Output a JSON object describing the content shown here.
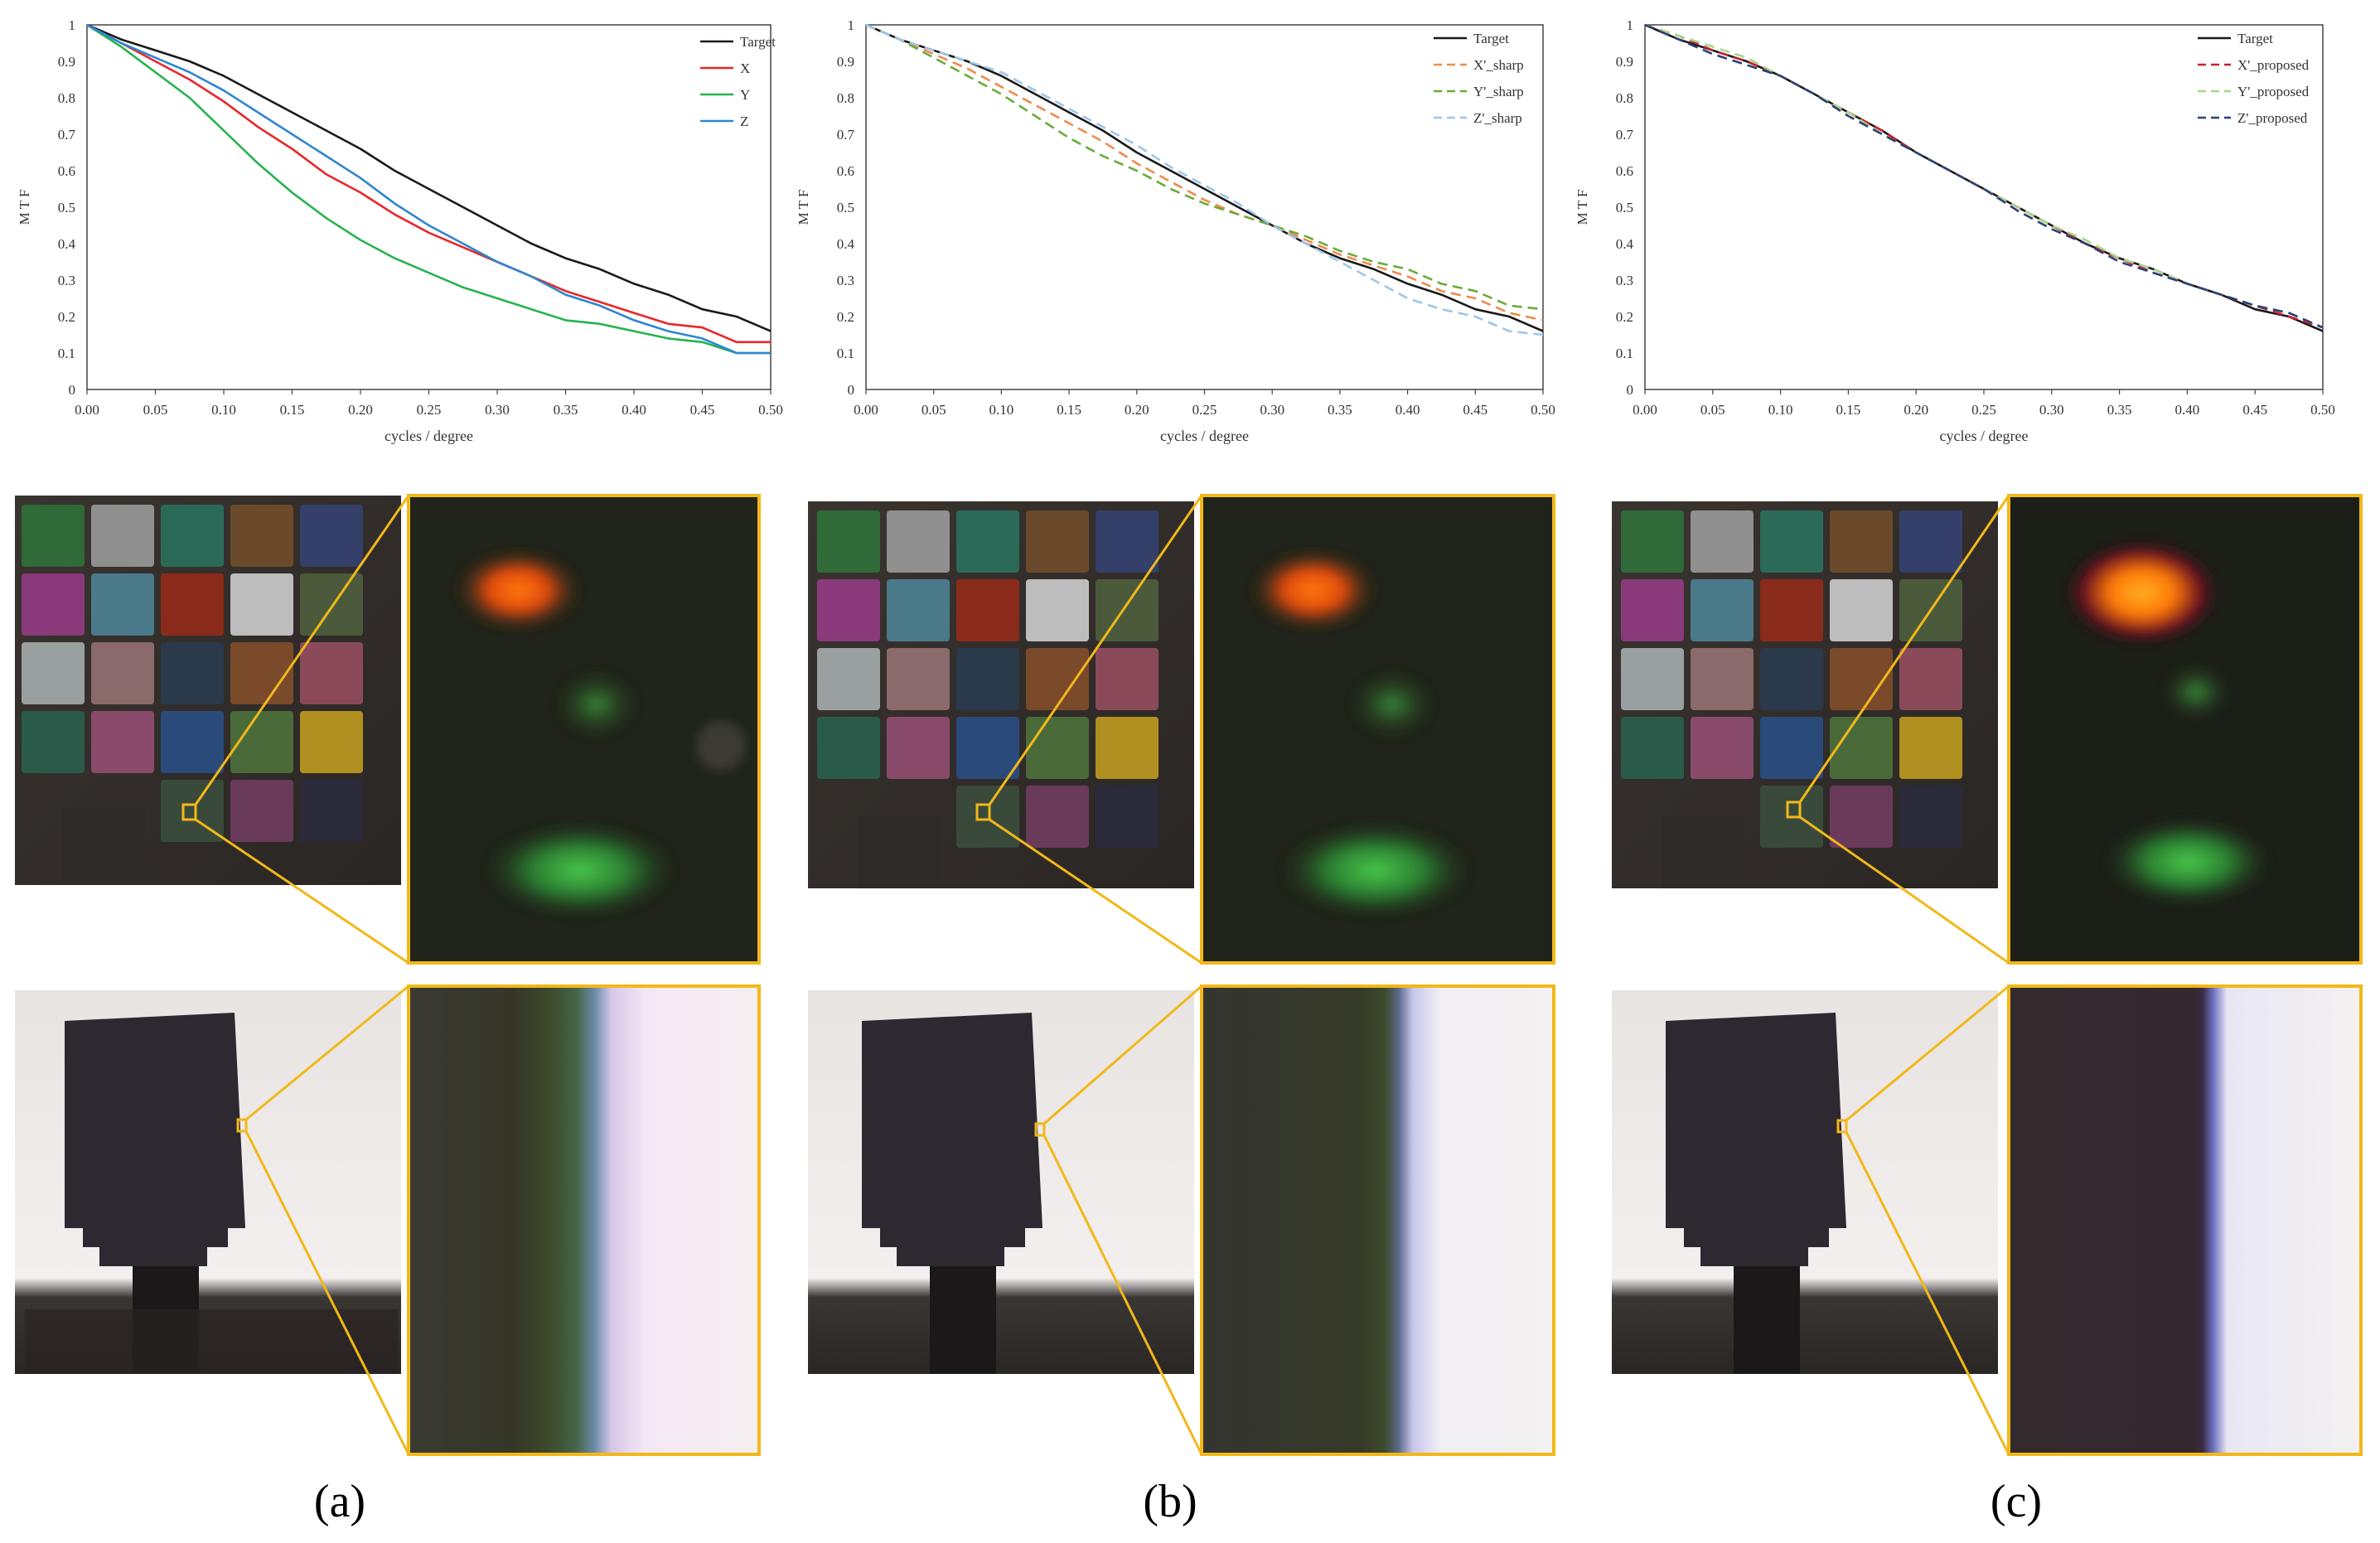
{
  "panels": [
    {
      "id": "a",
      "caption": "(a)",
      "chart_data": {
        "type": "line",
        "xlabel": "cycles / degree",
        "ylabel": "M T F",
        "xlim": [
          0,
          0.5
        ],
        "ylim": [
          0,
          1
        ],
        "xticks": [
          "0.00",
          "0.05",
          "0.10",
          "0.15",
          "0.20",
          "0.25",
          "0.30",
          "0.35",
          "0.40",
          "0.45",
          "0.50"
        ],
        "yticks": [
          "0",
          "0.1",
          "0.2",
          "0.3",
          "0.4",
          "0.5",
          "0.6",
          "0.7",
          "0.8",
          "0.9",
          "1"
        ],
        "grid": false,
        "legend_position": "top-right",
        "series": [
          {
            "name": "Target",
            "color": "#1a1a1a",
            "dash": "solid",
            "x": [
              0,
              0.025,
              0.05,
              0.075,
              0.1,
              0.125,
              0.15,
              0.175,
              0.2,
              0.225,
              0.25,
              0.275,
              0.3,
              0.325,
              0.35,
              0.375,
              0.4,
              0.425,
              0.45,
              0.475,
              0.5
            ],
            "y": [
              1,
              0.96,
              0.93,
              0.9,
              0.86,
              0.81,
              0.76,
              0.71,
              0.66,
              0.6,
              0.55,
              0.5,
              0.45,
              0.4,
              0.36,
              0.33,
              0.29,
              0.26,
              0.22,
              0.2,
              0.16
            ]
          },
          {
            "name": "X",
            "color": "#e8272a",
            "dash": "solid",
            "x": [
              0,
              0.025,
              0.05,
              0.075,
              0.1,
              0.125,
              0.15,
              0.175,
              0.2,
              0.225,
              0.25,
              0.275,
              0.3,
              0.325,
              0.35,
              0.375,
              0.4,
              0.425,
              0.45,
              0.475,
              0.5
            ],
            "y": [
              1,
              0.95,
              0.9,
              0.85,
              0.79,
              0.72,
              0.66,
              0.59,
              0.54,
              0.48,
              0.43,
              0.39,
              0.35,
              0.31,
              0.27,
              0.24,
              0.21,
              0.18,
              0.17,
              0.13,
              0.13
            ]
          },
          {
            "name": "Y",
            "color": "#27b34f",
            "dash": "solid",
            "x": [
              0,
              0.025,
              0.05,
              0.075,
              0.1,
              0.125,
              0.15,
              0.175,
              0.2,
              0.225,
              0.25,
              0.275,
              0.3,
              0.325,
              0.35,
              0.375,
              0.4,
              0.425,
              0.45,
              0.475,
              0.5
            ],
            "y": [
              1,
              0.94,
              0.87,
              0.8,
              0.71,
              0.62,
              0.54,
              0.47,
              0.41,
              0.36,
              0.32,
              0.28,
              0.25,
              0.22,
              0.19,
              0.18,
              0.16,
              0.14,
              0.13,
              0.1,
              0.1
            ]
          },
          {
            "name": "Z",
            "color": "#2e86d1",
            "dash": "solid",
            "x": [
              0,
              0.025,
              0.05,
              0.075,
              0.1,
              0.125,
              0.15,
              0.175,
              0.2,
              0.225,
              0.25,
              0.275,
              0.3,
              0.325,
              0.35,
              0.375,
              0.4,
              0.425,
              0.45,
              0.475,
              0.5
            ],
            "y": [
              1,
              0.95,
              0.91,
              0.87,
              0.82,
              0.76,
              0.7,
              0.64,
              0.58,
              0.51,
              0.45,
              0.4,
              0.35,
              0.31,
              0.26,
              0.23,
              0.19,
              0.16,
              0.14,
              0.1,
              0.1
            ]
          }
        ]
      }
    },
    {
      "id": "b",
      "caption": "(b)",
      "chart_data": {
        "type": "line",
        "xlabel": "cycles / degree",
        "ylabel": "M T F",
        "xlim": [
          0,
          0.5
        ],
        "ylim": [
          0,
          1
        ],
        "xticks": [
          "0.00",
          "0.05",
          "0.10",
          "0.15",
          "0.20",
          "0.25",
          "0.30",
          "0.35",
          "0.40",
          "0.45",
          "0.50"
        ],
        "yticks": [
          "0",
          "0.1",
          "0.2",
          "0.3",
          "0.4",
          "0.5",
          "0.6",
          "0.7",
          "0.8",
          "0.9",
          "1"
        ],
        "grid": false,
        "legend_position": "top-right",
        "series": [
          {
            "name": "Target",
            "color": "#1a1a1a",
            "dash": "solid",
            "x": [
              0,
              0.025,
              0.05,
              0.075,
              0.1,
              0.125,
              0.15,
              0.175,
              0.2,
              0.225,
              0.25,
              0.275,
              0.3,
              0.325,
              0.35,
              0.375,
              0.4,
              0.425,
              0.45,
              0.475,
              0.5
            ],
            "y": [
              1,
              0.96,
              0.93,
              0.9,
              0.86,
              0.81,
              0.76,
              0.71,
              0.65,
              0.6,
              0.55,
              0.5,
              0.45,
              0.4,
              0.36,
              0.33,
              0.29,
              0.26,
              0.22,
              0.2,
              0.16
            ]
          },
          {
            "name": "X'_sharp",
            "color": "#f08a4b",
            "dash": "dashed",
            "x": [
              0,
              0.025,
              0.05,
              0.075,
              0.1,
              0.125,
              0.15,
              0.175,
              0.2,
              0.225,
              0.25,
              0.275,
              0.3,
              0.325,
              0.35,
              0.375,
              0.4,
              0.425,
              0.45,
              0.475,
              0.5
            ],
            "y": [
              1,
              0.96,
              0.92,
              0.88,
              0.83,
              0.78,
              0.73,
              0.68,
              0.62,
              0.57,
              0.52,
              0.48,
              0.45,
              0.41,
              0.37,
              0.34,
              0.31,
              0.27,
              0.25,
              0.21,
              0.19
            ]
          },
          {
            "name": "Y'_sharp",
            "color": "#6aaa3a",
            "dash": "dashed",
            "x": [
              0,
              0.025,
              0.05,
              0.075,
              0.1,
              0.125,
              0.15,
              0.175,
              0.2,
              0.225,
              0.25,
              0.275,
              0.3,
              0.325,
              0.35,
              0.375,
              0.4,
              0.425,
              0.45,
              0.475,
              0.5
            ],
            "y": [
              1,
              0.96,
              0.91,
              0.86,
              0.81,
              0.75,
              0.69,
              0.64,
              0.6,
              0.55,
              0.51,
              0.48,
              0.45,
              0.42,
              0.38,
              0.35,
              0.33,
              0.29,
              0.27,
              0.23,
              0.22
            ]
          },
          {
            "name": "Z'_sharp",
            "color": "#9ec5ea",
            "dash": "dashed",
            "x": [
              0,
              0.025,
              0.05,
              0.075,
              0.1,
              0.125,
              0.15,
              0.175,
              0.2,
              0.225,
              0.25,
              0.275,
              0.3,
              0.325,
              0.35,
              0.375,
              0.4,
              0.425,
              0.45,
              0.475,
              0.5
            ],
            "y": [
              1,
              0.96,
              0.93,
              0.9,
              0.87,
              0.82,
              0.77,
              0.72,
              0.67,
              0.61,
              0.56,
              0.51,
              0.45,
              0.4,
              0.35,
              0.3,
              0.25,
              0.22,
              0.2,
              0.16,
              0.15
            ]
          }
        ]
      }
    },
    {
      "id": "c",
      "caption": "(c)",
      "chart_data": {
        "type": "line",
        "xlabel": "cycles / degree",
        "ylabel": "M T F",
        "xlim": [
          0,
          0.5
        ],
        "ylim": [
          0,
          1
        ],
        "xticks": [
          "0.00",
          "0.05",
          "0.10",
          "0.15",
          "0.20",
          "0.25",
          "0.30",
          "0.35",
          "0.40",
          "0.45",
          "0.50"
        ],
        "yticks": [
          "0",
          "0.1",
          "0.2",
          "0.3",
          "0.4",
          "0.5",
          "0.6",
          "0.7",
          "0.8",
          "0.9",
          "1"
        ],
        "grid": false,
        "legend_position": "top-right",
        "series": [
          {
            "name": "Target",
            "color": "#1a1a1a",
            "dash": "solid",
            "x": [
              0,
              0.025,
              0.05,
              0.075,
              0.1,
              0.125,
              0.15,
              0.175,
              0.2,
              0.225,
              0.25,
              0.275,
              0.3,
              0.325,
              0.35,
              0.375,
              0.4,
              0.425,
              0.45,
              0.475,
              0.5
            ],
            "y": [
              1,
              0.96,
              0.93,
              0.9,
              0.86,
              0.81,
              0.76,
              0.71,
              0.65,
              0.6,
              0.55,
              0.5,
              0.45,
              0.4,
              0.36,
              0.33,
              0.29,
              0.26,
              0.22,
              0.2,
              0.16
            ]
          },
          {
            "name": "X'_proposed",
            "color": "#c8202a",
            "dash": "dashed",
            "x": [
              0,
              0.025,
              0.05,
              0.075,
              0.1,
              0.125,
              0.15,
              0.175,
              0.2,
              0.225,
              0.25,
              0.275,
              0.3,
              0.325,
              0.35,
              0.375,
              0.4,
              0.425,
              0.45,
              0.475,
              0.5
            ],
            "y": [
              1,
              0.97,
              0.93,
              0.9,
              0.86,
              0.81,
              0.76,
              0.71,
              0.65,
              0.6,
              0.55,
              0.5,
              0.45,
              0.4,
              0.36,
              0.32,
              0.29,
              0.26,
              0.23,
              0.2,
              0.17
            ]
          },
          {
            "name": "Y'_proposed",
            "color": "#a8d88a",
            "dash": "dashed",
            "x": [
              0,
              0.025,
              0.05,
              0.075,
              0.1,
              0.125,
              0.15,
              0.175,
              0.2,
              0.225,
              0.25,
              0.275,
              0.3,
              0.325,
              0.35,
              0.375,
              0.4,
              0.425,
              0.45,
              0.475,
              0.5
            ],
            "y": [
              1,
              0.97,
              0.94,
              0.91,
              0.86,
              0.81,
              0.76,
              0.7,
              0.65,
              0.6,
              0.55,
              0.5,
              0.45,
              0.41,
              0.36,
              0.33,
              0.29,
              0.26,
              0.23,
              0.21,
              0.17
            ]
          },
          {
            "name": "Z'_proposed",
            "color": "#2a3f7a",
            "dash": "dashed",
            "x": [
              0,
              0.025,
              0.05,
              0.075,
              0.1,
              0.125,
              0.15,
              0.175,
              0.2,
              0.225,
              0.25,
              0.275,
              0.3,
              0.325,
              0.35,
              0.375,
              0.4,
              0.425,
              0.45,
              0.475,
              0.5
            ],
            "y": [
              1,
              0.96,
              0.92,
              0.89,
              0.86,
              0.81,
              0.75,
              0.7,
              0.65,
              0.6,
              0.55,
              0.49,
              0.44,
              0.4,
              0.35,
              0.32,
              0.29,
              0.26,
              0.23,
              0.21,
              0.17
            ]
          }
        ]
      }
    }
  ],
  "photos": {
    "zoom_frame_color": "#f2b819"
  }
}
